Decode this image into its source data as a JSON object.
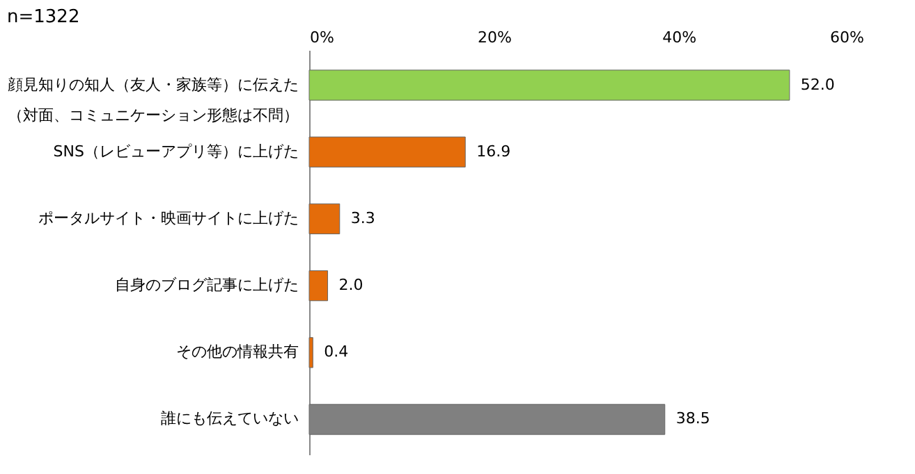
{
  "chart_data": {
    "type": "bar",
    "orientation": "horizontal",
    "title": "n=1322",
    "categories": [
      "顔見知りの知人（友人・家族等）に伝えた（対面、コミュニケーション形態は不問）",
      "SNS（レビューアプリ等）に上げた",
      "ポータルサイト・映画サイトに上げた",
      "自身のブログ記事に上げた",
      "その他の情報共有",
      "誰にも伝えていない"
    ],
    "values": [
      52.0,
      16.9,
      3.3,
      2.0,
      0.4,
      38.5
    ],
    "colors": [
      "#92d050",
      "#e46c0a",
      "#e46c0a",
      "#e46c0a",
      "#e46c0a",
      "#808080"
    ],
    "value_labels": [
      "52.0",
      "16.9",
      "3.3",
      "2.0",
      "0.4",
      "38.5"
    ],
    "xlim": [
      0,
      60
    ],
    "xticks": [
      {
        "value": 0,
        "label": "0%"
      },
      {
        "value": 20,
        "label": "20%"
      },
      {
        "value": 40,
        "label": "40%"
      },
      {
        "value": 60,
        "label": "60%"
      }
    ],
    "grid": false
  }
}
